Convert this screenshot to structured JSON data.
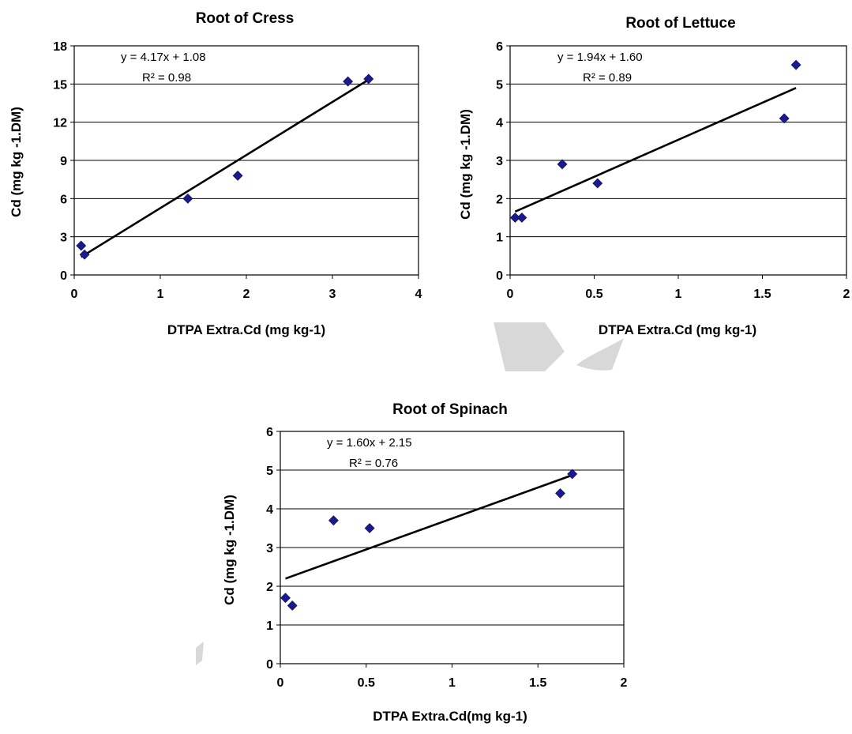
{
  "chart_data": [
    {
      "type": "scatter",
      "title": "Root of Cress",
      "xlabel": "DTPA Extra.Cd (mg kg-1)",
      "ylabel": "Cd (mg kg -1.DM)",
      "xlim": [
        0,
        4
      ],
      "ylim": [
        0,
        18
      ],
      "x_ticks": [
        "0",
        "1",
        "2",
        "3",
        "4"
      ],
      "y_ticks": [
        "0",
        "3",
        "6",
        "9",
        "12",
        "15",
        "18"
      ],
      "grid": "horizontal",
      "points": [
        {
          "x": 0.08,
          "y": 2.3
        },
        {
          "x": 0.12,
          "y": 1.6
        },
        {
          "x": 1.32,
          "y": 6.0
        },
        {
          "x": 1.9,
          "y": 7.8
        },
        {
          "x": 3.18,
          "y": 15.2
        },
        {
          "x": 3.42,
          "y": 15.4
        }
      ],
      "trendline": {
        "slope": 4.17,
        "intercept": 1.08,
        "x_range": [
          0.08,
          3.42
        ]
      },
      "equation": "y = 4.17x + 1.08",
      "r2_label": "R² = 0.98",
      "marker_color": "#1a1a8c",
      "line_color": "#000000"
    },
    {
      "type": "scatter",
      "title": "Root of Lettuce",
      "xlabel": "DTPA Extra.Cd (mg kg-1)",
      "ylabel": "Cd (mg kg -1.DM)",
      "xlim": [
        0,
        2
      ],
      "ylim": [
        0,
        6
      ],
      "x_ticks": [
        "0",
        "0.5",
        "1",
        "1.5",
        "2"
      ],
      "y_ticks": [
        "0",
        "1",
        "2",
        "3",
        "4",
        "5",
        "6"
      ],
      "grid": "horizontal",
      "points": [
        {
          "x": 0.03,
          "y": 1.5
        },
        {
          "x": 0.07,
          "y": 1.5
        },
        {
          "x": 0.31,
          "y": 2.9
        },
        {
          "x": 0.52,
          "y": 2.4
        },
        {
          "x": 1.63,
          "y": 4.1
        },
        {
          "x": 1.7,
          "y": 5.5
        }
      ],
      "trendline": {
        "slope": 1.94,
        "intercept": 1.6,
        "x_range": [
          0.03,
          1.7
        ]
      },
      "equation": "y = 1.94x + 1.60",
      "r2_label": "R² = 0.89",
      "marker_color": "#1a1a8c",
      "line_color": "#000000"
    },
    {
      "type": "scatter",
      "title": "Root of Spinach",
      "xlabel": "DTPA Extra.Cd(mg kg-1)",
      "ylabel": "Cd (mg kg -1.DM)",
      "xlim": [
        0,
        2
      ],
      "ylim": [
        0,
        6
      ],
      "x_ticks": [
        "0",
        "0.5",
        "1",
        "1.5",
        "2"
      ],
      "y_ticks": [
        "0",
        "1",
        "2",
        "3",
        "4",
        "5",
        "6"
      ],
      "grid": "horizontal",
      "points": [
        {
          "x": 0.03,
          "y": 1.7
        },
        {
          "x": 0.07,
          "y": 1.5
        },
        {
          "x": 0.31,
          "y": 3.7
        },
        {
          "x": 0.52,
          "y": 3.5
        },
        {
          "x": 1.63,
          "y": 4.4
        },
        {
          "x": 1.7,
          "y": 4.9
        }
      ],
      "trendline": {
        "slope": 1.6,
        "intercept": 2.15,
        "x_range": [
          0.03,
          1.7
        ]
      },
      "equation": "y = 1.60x + 2.15",
      "r2_label": "R² = 0.76",
      "marker_color": "#1a1a8c",
      "line_color": "#000000"
    }
  ]
}
